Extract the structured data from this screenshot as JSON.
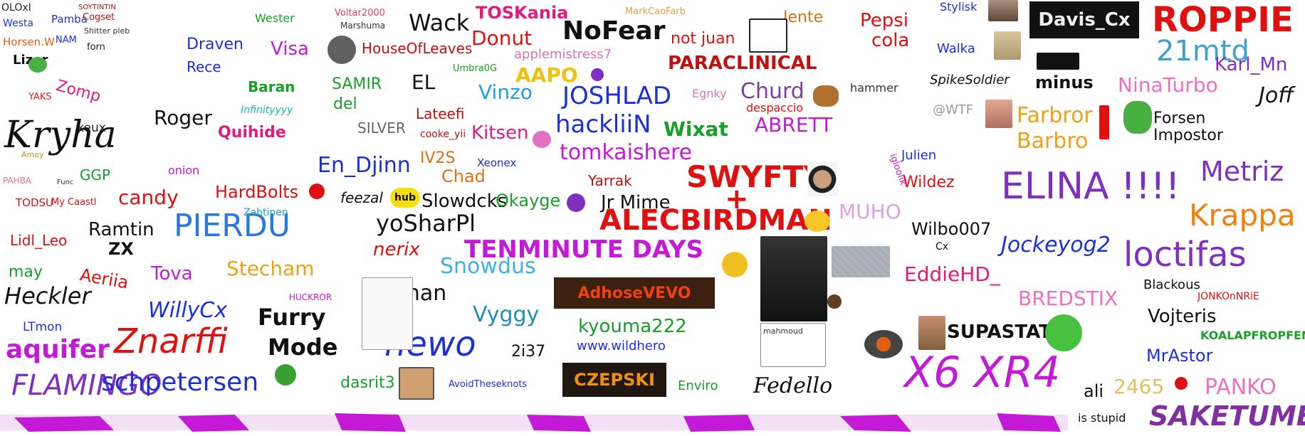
{
  "scribbles": [
    {
      "id": "s1",
      "text": "OLOxI"
    },
    {
      "id": "s2",
      "text": "Westa"
    },
    {
      "id": "s3",
      "text": "Pamba"
    },
    {
      "id": "s4",
      "text": "SOYTINTIN"
    },
    {
      "id": "s5",
      "text": "Cogset"
    },
    {
      "id": "s6",
      "text": "Shitter pleb"
    },
    {
      "id": "s7",
      "text": "Horsen.W"
    },
    {
      "id": "s8",
      "text": "NAM"
    },
    {
      "id": "s9",
      "text": "forn"
    },
    {
      "id": "s10",
      "text": "Lizor"
    },
    {
      "id": "s11",
      "text": "Draven"
    },
    {
      "id": "s12",
      "text": "Wester"
    },
    {
      "id": "s13",
      "text": "Voltar2000"
    },
    {
      "id": "s14",
      "text": "Marshuma"
    },
    {
      "id": "s15",
      "text": "Visa"
    },
    {
      "id": "s16",
      "text": "HouseOfLeaves"
    },
    {
      "id": "s17",
      "text": "Wack"
    },
    {
      "id": "s18",
      "text": "TOSKania"
    },
    {
      "id": "s19",
      "text": "Donut"
    },
    {
      "id": "s20",
      "text": "NoFear"
    },
    {
      "id": "s21",
      "text": "MarkCaoFarb"
    },
    {
      "id": "s22",
      "text": "not juan"
    },
    {
      "id": "s23",
      "text": "Jente"
    },
    {
      "id": "s24",
      "text": "PARACLINICAL"
    },
    {
      "id": "s25",
      "text": "applemistress7"
    },
    {
      "id": "s26",
      "text": "AAPO"
    },
    {
      "id": "s27",
      "text": "JOSHLAD"
    },
    {
      "id": "s28",
      "text": "hackliiN"
    },
    {
      "id": "s29",
      "text": "Umbra0G"
    },
    {
      "id": "s30",
      "text": "Vinzo"
    },
    {
      "id": "s31",
      "text": "Lateefi"
    },
    {
      "id": "s32",
      "text": "Kitsen"
    },
    {
      "id": "s33",
      "text": "Egnky"
    },
    {
      "id": "s34",
      "text": "Churd"
    },
    {
      "id": "s35",
      "text": "despaccio"
    },
    {
      "id": "s36",
      "text": "ABRETT"
    },
    {
      "id": "s37",
      "text": "Wixat"
    },
    {
      "id": "s38",
      "text": "tomkaishere"
    },
    {
      "id": "s39",
      "text": "cooke_yii"
    },
    {
      "id": "s40",
      "text": "IV2S"
    },
    {
      "id": "s41",
      "text": "Chad"
    },
    {
      "id": "s42",
      "text": "Xeonex"
    },
    {
      "id": "s43",
      "text": "Yarrak"
    },
    {
      "id": "s44",
      "text": "SWYFTY"
    },
    {
      "id": "s45",
      "text": "+"
    },
    {
      "id": "s46",
      "text": "ALECBIRDMAN"
    },
    {
      "id": "s47",
      "text": "Jr Mime"
    },
    {
      "id": "s48",
      "text": "Okayge"
    },
    {
      "id": "s49",
      "text": "Slowdcks"
    },
    {
      "id": "s50",
      "text": "feezal"
    },
    {
      "id": "s51",
      "text": "hub"
    },
    {
      "id": "s52",
      "text": "yoSharPl"
    },
    {
      "id": "s53",
      "text": "SILVER"
    },
    {
      "id": "s54",
      "text": "En_Djinn"
    },
    {
      "id": "s55",
      "text": "Baran"
    },
    {
      "id": "s56",
      "text": "SAMIR"
    },
    {
      "id": "s57",
      "text": "del"
    },
    {
      "id": "s58",
      "text": "EL"
    },
    {
      "id": "s59",
      "text": "Infinityyyy"
    },
    {
      "id": "s60",
      "text": "Roger"
    },
    {
      "id": "s61",
      "text": "Quihide"
    },
    {
      "id": "s62",
      "text": "Rece"
    },
    {
      "id": "s63",
      "text": "Zomp"
    },
    {
      "id": "s64",
      "text": "YAKS"
    },
    {
      "id": "s65",
      "text": "xeux"
    },
    {
      "id": "s66",
      "text": "Kryha"
    },
    {
      "id": "s67",
      "text": "onion"
    },
    {
      "id": "s68",
      "text": "GGP"
    },
    {
      "id": "s69",
      "text": "PAHBA"
    },
    {
      "id": "s70",
      "text": "TODSU"
    },
    {
      "id": "s71",
      "text": "My Caastl"
    },
    {
      "id": "s72",
      "text": "candy"
    },
    {
      "id": "s73",
      "text": "HardBolts"
    },
    {
      "id": "s74",
      "text": "Ramtin"
    },
    {
      "id": "s75",
      "text": "ZX"
    },
    {
      "id": "s76",
      "text": "PIERDU"
    },
    {
      "id": "s77",
      "text": "Zahtinen"
    },
    {
      "id": "s78",
      "text": "Lidl_Leo"
    },
    {
      "id": "s79",
      "text": "may"
    },
    {
      "id": "s80",
      "text": "Aeriia"
    },
    {
      "id": "s81",
      "text": "Tova"
    },
    {
      "id": "s82",
      "text": "Stecham"
    },
    {
      "id": "s83",
      "text": "Heckler"
    },
    {
      "id": "s84",
      "text": "LTmon"
    },
    {
      "id": "s85",
      "text": "aquifer"
    },
    {
      "id": "s86",
      "text": "Znarffi"
    },
    {
      "id": "s87",
      "text": "WillyCx"
    },
    {
      "id": "s88",
      "text": "Furry"
    },
    {
      "id": "s89",
      "text": "Mode"
    },
    {
      "id": "s90",
      "text": "HUCKROR"
    },
    {
      "id": "s91",
      "text": "FLAMINGO"
    },
    {
      "id": "s92",
      "text": "schpetersen"
    },
    {
      "id": "s93",
      "text": "nerix"
    },
    {
      "id": "s94",
      "text": "TENMINUTE DAYS"
    },
    {
      "id": "s95",
      "text": "Snowdus"
    },
    {
      "id": "s96",
      "text": "Jizzman"
    },
    {
      "id": "s97",
      "text": "Vyggy"
    },
    {
      "id": "s98",
      "text": "hewo"
    },
    {
      "id": "s99",
      "text": "2i37"
    },
    {
      "id": "s100",
      "text": "kyouma222"
    },
    {
      "id": "s101",
      "text": "www.wildhero"
    },
    {
      "id": "s102",
      "text": "dasrit3"
    },
    {
      "id": "s103",
      "text": "AvoidTheseknots"
    },
    {
      "id": "s104",
      "text": "Enviro"
    },
    {
      "id": "s105",
      "text": "Fedello"
    },
    {
      "id": "s106",
      "text": "Pepsi"
    },
    {
      "id": "s107",
      "text": "cola"
    },
    {
      "id": "s108",
      "text": "Stylisk"
    },
    {
      "id": "s109",
      "text": "Davis_Cx"
    },
    {
      "id": "s110",
      "text": "ROPPIE"
    },
    {
      "id": "s111",
      "text": "Walka"
    },
    {
      "id": "s112",
      "text": "21mtd"
    },
    {
      "id": "s113",
      "text": "Karl_Mn"
    },
    {
      "id": "s114",
      "text": "SpikeSoldier"
    },
    {
      "id": "s115",
      "text": "minus"
    },
    {
      "id": "s116",
      "text": "NinaTurbo"
    },
    {
      "id": "s117",
      "text": "hammer"
    },
    {
      "id": "s118",
      "text": "@WTF"
    },
    {
      "id": "s119",
      "text": "Farbror"
    },
    {
      "id": "s120",
      "text": "Barbro"
    },
    {
      "id": "s121",
      "text": "Forsen"
    },
    {
      "id": "s122",
      "text": "Impostor"
    },
    {
      "id": "s123",
      "text": "Julien"
    },
    {
      "id": "s124",
      "text": "Wildez"
    },
    {
      "id": "s125",
      "text": "ELINA !!!!"
    },
    {
      "id": "s126",
      "text": "Metriz"
    },
    {
      "id": "s127",
      "text": "Krappa"
    },
    {
      "id": "s128",
      "text": "igloolik"
    },
    {
      "id": "s129",
      "text": "MUHO"
    },
    {
      "id": "s130",
      "text": "Wilbo007"
    },
    {
      "id": "s131",
      "text": "Cx"
    },
    {
      "id": "s132",
      "text": "Jockeyog2"
    },
    {
      "id": "s133",
      "text": "loctifas"
    },
    {
      "id": "s134",
      "text": "EddieHD_"
    },
    {
      "id": "s135",
      "text": "BREDSTIX"
    },
    {
      "id": "s136",
      "text": "Blackous"
    },
    {
      "id": "s137",
      "text": "JONKOnNRiE"
    },
    {
      "id": "s138",
      "text": "Vojteris"
    },
    {
      "id": "s139",
      "text": "KOALAPFROPFEN"
    },
    {
      "id": "s140",
      "text": "SUPASTAT"
    },
    {
      "id": "s141",
      "text": "MrAstor"
    },
    {
      "id": "s142",
      "text": "X6 XR4"
    },
    {
      "id": "s143",
      "text": "ali"
    },
    {
      "id": "s144",
      "text": "2465"
    },
    {
      "id": "s145",
      "text": "PANKO"
    },
    {
      "id": "s146",
      "text": "is stupid"
    },
    {
      "id": "s147",
      "text": "SAKETUME"
    },
    {
      "id": "s148",
      "text": "AdhoseVEVO"
    },
    {
      "id": "s149",
      "text": "CZEPSKI"
    },
    {
      "id": "s150",
      "text": "Joff"
    },
    {
      "id": "s151",
      "text": "Func"
    },
    {
      "id": "s152",
      "text": "mahmoud"
    },
    {
      "id": "s153",
      "text": "Amey"
    }
  ],
  "colors": {
    "purple_band": "#c41ad8",
    "red": "#e8101a",
    "blue": "#1c30d8",
    "green": "#18a028",
    "pink": "#f070c0",
    "orange": "#f08010"
  },
  "icons": [
    "pepe-frog-icon",
    "heart-icon",
    "sunglasses-emoji-icon",
    "cat-photo-icon",
    "dog-photo-icon",
    "face-photo-icon",
    "product-can-icon"
  ]
}
